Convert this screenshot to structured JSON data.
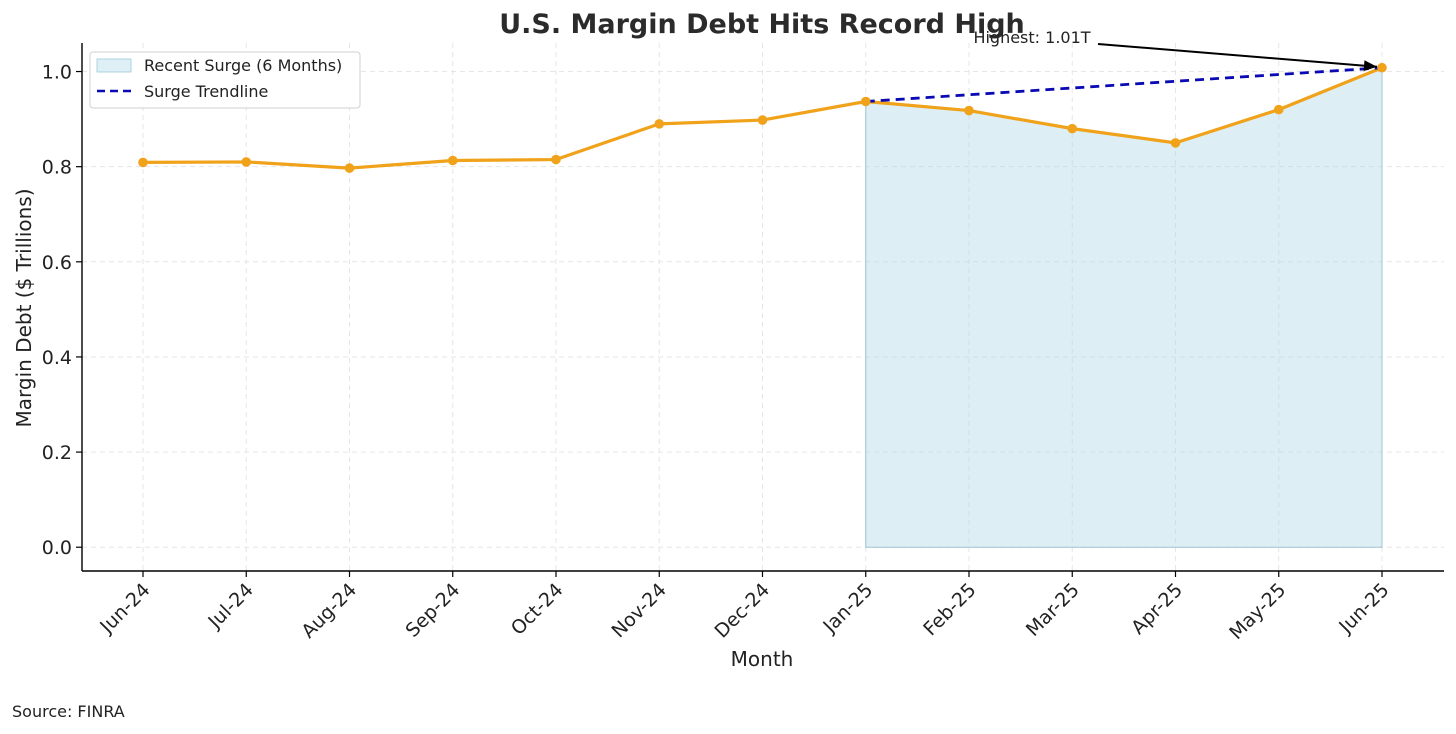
{
  "chart_data": {
    "type": "line",
    "title": "U.S. Margin Debt Hits Record High",
    "xlabel": "Month",
    "ylabel": "Margin Debt ($ Trillions)",
    "categories": [
      "Jun-24",
      "Jul-24",
      "Aug-24",
      "Sep-24",
      "Oct-24",
      "Nov-24",
      "Dec-24",
      "Jan-25",
      "Feb-25",
      "Mar-25",
      "Apr-25",
      "May-25",
      "Jun-25"
    ],
    "series": [
      {
        "values": [
          0.809,
          0.81,
          0.797,
          0.813,
          0.815,
          0.89,
          0.898,
          0.937,
          0.918,
          0.88,
          0.85,
          0.92,
          1.008
        ],
        "color": "#f0a21a"
      }
    ],
    "surge": {
      "name": "Recent Surge (6 Months)",
      "from": "Jan-25",
      "to": "Jun-25",
      "color": "#add8e6"
    },
    "trendline": {
      "name": "Surge Trendline",
      "from": "Jan-25",
      "to": "Jun-25",
      "color": "#0a0ab4"
    },
    "annotation": {
      "text": "Highest: 1.01T",
      "category": "Jun-25"
    },
    "ylim": [
      -0.05,
      1.06
    ],
    "yticks": [
      0.0,
      0.2,
      0.4,
      0.6,
      0.8,
      1.0
    ],
    "ytick_labels": [
      "0.0",
      "0.2",
      "0.4",
      "0.6",
      "0.8",
      "1.0"
    ],
    "grid": true,
    "legend_position": "top-left"
  },
  "source": "Source: FINRA"
}
